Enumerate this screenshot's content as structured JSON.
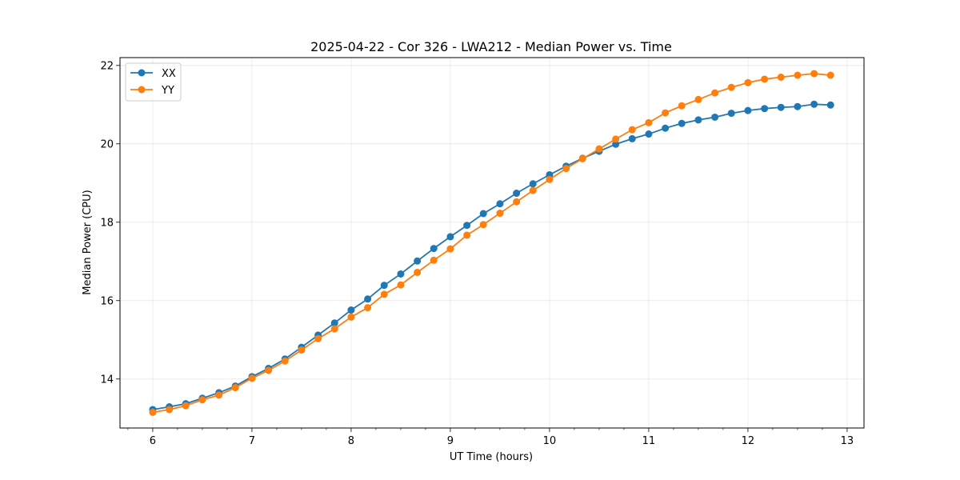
{
  "chart_data": {
    "type": "line",
    "title": "2025-04-22 - Cor 326 - LWA212 - Median Power vs. Time",
    "xlabel": "UT Time (hours)",
    "ylabel": "Median Power (CPU)",
    "xlim": [
      5.67,
      13.17
    ],
    "ylim": [
      12.75,
      22.2
    ],
    "xticks": [
      6,
      7,
      8,
      9,
      10,
      11,
      12,
      13
    ],
    "yticks": [
      14,
      16,
      18,
      20,
      22
    ],
    "grid": true,
    "legend_position": "top-left",
    "x": [
      6.0,
      6.167,
      6.333,
      6.5,
      6.667,
      6.833,
      7.0,
      7.167,
      7.333,
      7.5,
      7.667,
      7.833,
      8.0,
      8.167,
      8.333,
      8.5,
      8.667,
      8.833,
      9.0,
      9.167,
      9.333,
      9.5,
      9.667,
      9.833,
      10.0,
      10.167,
      10.333,
      10.5,
      10.667,
      10.833,
      11.0,
      11.167,
      11.333,
      11.5,
      11.667,
      11.833,
      12.0,
      12.167,
      12.333,
      12.5,
      12.667,
      12.833
    ],
    "series": [
      {
        "name": "XX",
        "color": "#1f77b4",
        "values": [
          13.22,
          13.29,
          13.37,
          13.51,
          13.65,
          13.82,
          14.06,
          14.27,
          14.51,
          14.81,
          15.12,
          15.43,
          15.76,
          16.04,
          16.39,
          16.68,
          17.01,
          17.33,
          17.63,
          17.92,
          18.22,
          18.47,
          18.74,
          18.98,
          19.21,
          19.43,
          19.63,
          19.81,
          19.99,
          20.13,
          20.25,
          20.4,
          20.52,
          20.61,
          20.68,
          20.78,
          20.85,
          20.9,
          20.93,
          20.95,
          21.01,
          20.99
        ]
      },
      {
        "name": "YY",
        "color": "#ff7f0e",
        "values": [
          13.15,
          13.22,
          13.32,
          13.47,
          13.59,
          13.78,
          14.02,
          14.22,
          14.46,
          14.74,
          15.03,
          15.28,
          15.58,
          15.82,
          16.16,
          16.4,
          16.72,
          17.03,
          17.32,
          17.67,
          17.94,
          18.23,
          18.52,
          18.81,
          19.09,
          19.37,
          19.62,
          19.87,
          20.12,
          20.36,
          20.54,
          20.79,
          20.97,
          21.13,
          21.3,
          21.44,
          21.56,
          21.65,
          21.7,
          21.75,
          21.79,
          21.75
        ]
      }
    ]
  }
}
